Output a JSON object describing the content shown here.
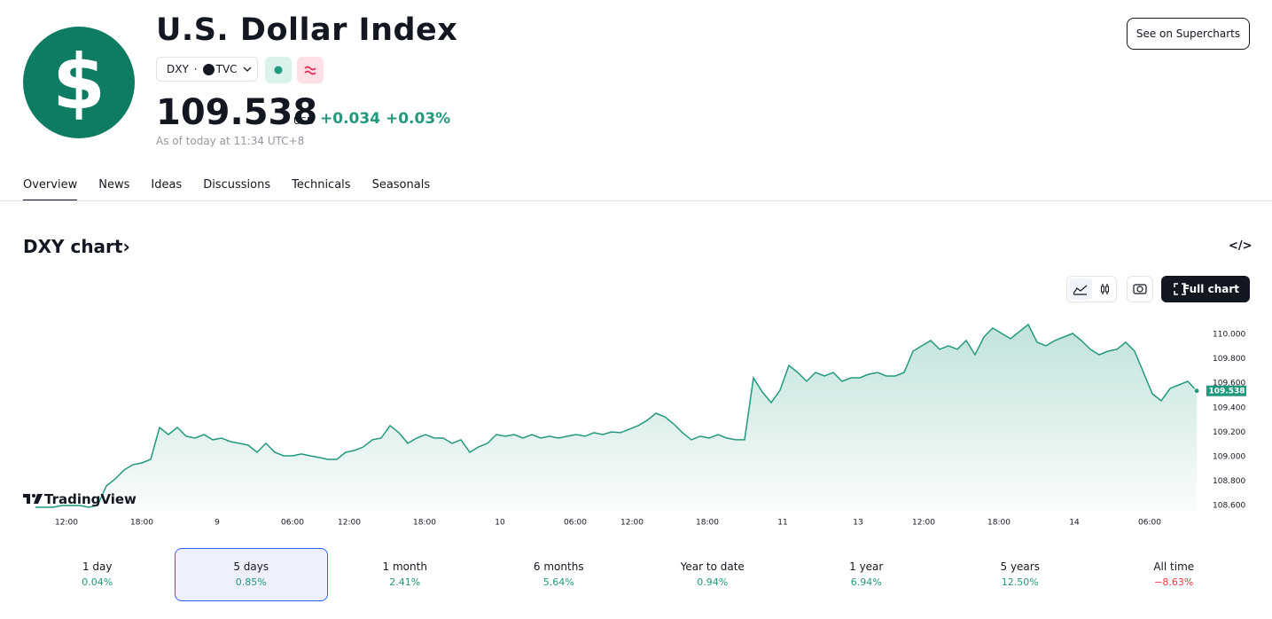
{
  "header": {
    "logo_text": "$",
    "title": "U.S. Dollar Index",
    "symbol": "DXY",
    "exchange": "TVC",
    "price": "109.538",
    "currency": "USD",
    "change": "+0.034",
    "change_pct": "+0.03%",
    "as_of": "As of today at 11:34 UTC+8",
    "button": "See on Supercharts"
  },
  "tabs": {
    "items": [
      "Overview",
      "News",
      "Ideas",
      "Discussions",
      "Technicals",
      "Seasonals"
    ],
    "active": 0
  },
  "chart_section": {
    "title": "DXY chart",
    "full_chart": "Full chart",
    "watermark": "TradingView"
  },
  "chart_data": {
    "type": "area",
    "color": "#22997f",
    "values": [
      108.587,
      108.587,
      108.587,
      108.601,
      108.601,
      108.601,
      108.587,
      108.601,
      108.761,
      108.819,
      108.891,
      108.935,
      108.949,
      108.978,
      109.239,
      109.181,
      109.239,
      109.167,
      109.152,
      109.181,
      109.138,
      109.152,
      109.123,
      109.109,
      109.094,
      109.036,
      109.109,
      109.036,
      109.007,
      109.007,
      109.022,
      109.007,
      108.993,
      108.978,
      108.978,
      109.036,
      109.051,
      109.08,
      109.138,
      109.152,
      109.254,
      109.196,
      109.109,
      109.152,
      109.181,
      109.152,
      109.152,
      109.109,
      109.138,
      109.036,
      109.08,
      109.109,
      109.181,
      109.167,
      109.181,
      109.152,
      109.181,
      109.152,
      109.167,
      109.152,
      109.167,
      109.181,
      109.167,
      109.196,
      109.181,
      109.203,
      109.196,
      109.225,
      109.254,
      109.297,
      109.355,
      109.326,
      109.268,
      109.196,
      109.138,
      109.167,
      109.152,
      109.181,
      109.152,
      109.138,
      109.138,
      109.645,
      109.529,
      109.442,
      109.543,
      109.746,
      109.688,
      109.616,
      109.688,
      109.659,
      109.688,
      109.616,
      109.645,
      109.645,
      109.674,
      109.688,
      109.659,
      109.659,
      109.688,
      109.862,
      109.906,
      109.949,
      109.877,
      109.906,
      109.877,
      109.949,
      109.833,
      109.978,
      110.051,
      110.007,
      109.964,
      110.022,
      110.08,
      109.935,
      109.906,
      109.949,
      109.978,
      110.007,
      109.949,
      109.877,
      109.833,
      109.862,
      109.877,
      109.935,
      109.862,
      109.688,
      109.514,
      109.457,
      109.558,
      109.587,
      109.616,
      109.538
    ],
    "last_value_label": "109.538",
    "xlim": [
      0,
      131.5
    ],
    "xticks": [
      {
        "value": 3.5,
        "label": "12:00"
      },
      {
        "value": 12,
        "label": "18:00"
      },
      {
        "value": 20.5,
        "label": "9"
      },
      {
        "value": 29,
        "label": "06:00"
      },
      {
        "value": 35.4,
        "label": "12:00"
      },
      {
        "value": 43.9,
        "label": "18:00"
      },
      {
        "value": 52.4,
        "label": "10"
      },
      {
        "value": 60.9,
        "label": "06:00"
      },
      {
        "value": 67.3,
        "label": "12:00"
      },
      {
        "value": 75.8,
        "label": "18:00"
      },
      {
        "value": 84.3,
        "label": "11"
      },
      {
        "value": 92.8,
        "label": "13"
      },
      {
        "value": 100.2,
        "label": "12:00"
      },
      {
        "value": 108.7,
        "label": "18:00"
      },
      {
        "value": 117.2,
        "label": "14"
      },
      {
        "value": 125.7,
        "label": "06:00"
      }
    ],
    "ylim": [
      108.56,
      110.12
    ],
    "yticks": [
      {
        "value": 108.6,
        "label": "108.600"
      },
      {
        "value": 108.8,
        "label": "108.800"
      },
      {
        "value": 109,
        "label": "109.000"
      },
      {
        "value": 109.2,
        "label": "109.200"
      },
      {
        "value": 109.4,
        "label": "109.400"
      },
      {
        "value": 109.6,
        "label": "109.600"
      },
      {
        "value": 109.8,
        "label": "109.800"
      },
      {
        "value": 110,
        "label": "110.000"
      }
    ]
  },
  "periods": {
    "items": [
      {
        "label": "1 day",
        "change": "0.04%"
      },
      {
        "label": "5 days",
        "change": "0.85%"
      },
      {
        "label": "1 month",
        "change": "2.41%"
      },
      {
        "label": "6 months",
        "change": "5.64%"
      },
      {
        "label": "Year to date",
        "change": "0.94%"
      },
      {
        "label": "1 year",
        "change": "6.94%"
      },
      {
        "label": "5 years",
        "change": "12.50%"
      },
      {
        "label": "All time",
        "change": "−8.63%"
      }
    ],
    "selected": 1
  }
}
